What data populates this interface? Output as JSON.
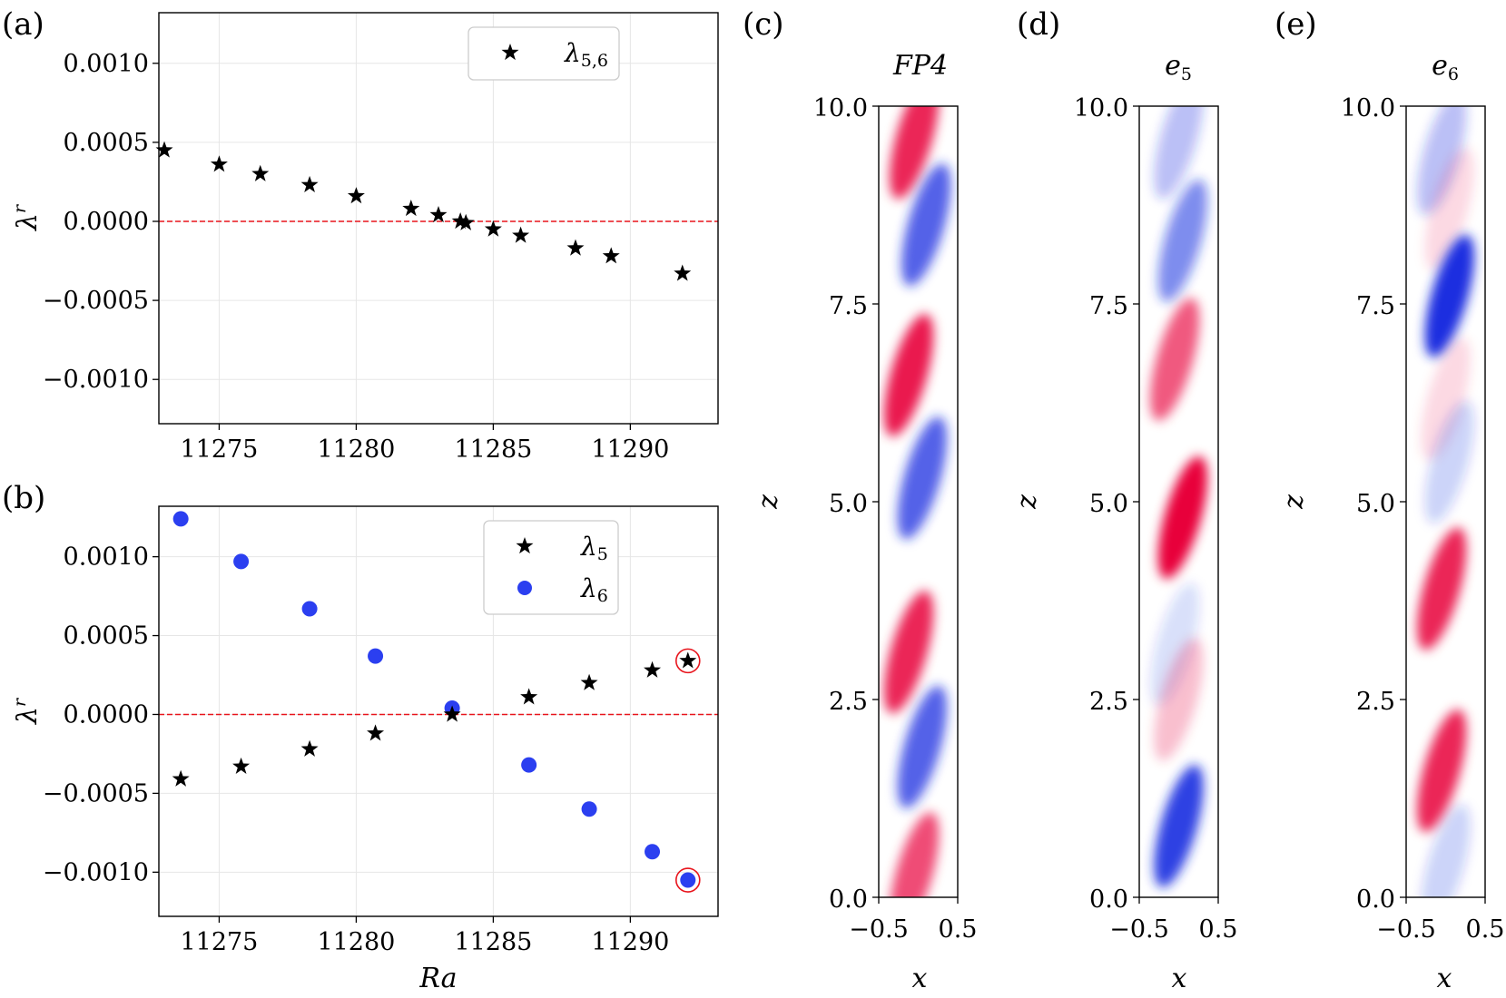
{
  "chart_data": [
    {
      "panel": "(a)",
      "type": "scatter",
      "ylabel": "λ",
      "ylabel_sup": "r",
      "xlabel": "",
      "xlim": [
        11272.8,
        11293.2
      ],
      "ylim": [
        -0.00128,
        0.00132
      ],
      "xticks": [
        11275,
        11280,
        11285,
        11290
      ],
      "xtick_labels": [
        "11275",
        "11280",
        "11285",
        "11290"
      ],
      "yticks": [
        0.001,
        0.0005,
        0.0,
        -0.0005,
        -0.001
      ],
      "ytick_labels": [
        "0.0010",
        "0.0005",
        "0.0000",
        "−0.0005",
        "−0.0010"
      ],
      "grid": true,
      "reference_line": {
        "y": 0.0,
        "color": "#e8141c",
        "style": "dashed"
      },
      "legend_position": "top-right",
      "series": [
        {
          "name": "λ5,6",
          "legend_main": "λ",
          "legend_sub": "5,6",
          "marker": "star",
          "color": "#000000",
          "points": [
            [
              11273.0,
              0.00045
            ],
            [
              11275.0,
              0.00036
            ],
            [
              11276.5,
              0.0003
            ],
            [
              11278.3,
              0.00023
            ],
            [
              11280.0,
              0.00016
            ],
            [
              11282.0,
              8e-05
            ],
            [
              11283.0,
              4e-05
            ],
            [
              11283.8,
              0.0
            ],
            [
              11284.0,
              -1e-05
            ],
            [
              11285.0,
              -5e-05
            ],
            [
              11286.0,
              -9e-05
            ],
            [
              11288.0,
              -0.00017
            ],
            [
              11289.3,
              -0.00022
            ],
            [
              11291.9,
              -0.00033
            ]
          ]
        }
      ]
    },
    {
      "panel": "(b)",
      "type": "scatter",
      "ylabel": "λ",
      "ylabel_sup": "r",
      "xlabel": "Ra",
      "xlim": [
        11272.8,
        11293.2
      ],
      "ylim": [
        -0.00128,
        0.00132
      ],
      "xticks": [
        11275,
        11280,
        11285,
        11290
      ],
      "xtick_labels": [
        "11275",
        "11280",
        "11285",
        "11290"
      ],
      "yticks": [
        0.001,
        0.0005,
        0.0,
        -0.0005,
        -0.001
      ],
      "ytick_labels": [
        "0.0010",
        "0.0005",
        "0.0000",
        "−0.0005",
        "−0.0010"
      ],
      "grid": true,
      "reference_line": {
        "y": 0.0,
        "color": "#e8141c",
        "style": "dashed"
      },
      "legend_position": "top-right",
      "series": [
        {
          "name": "λ5",
          "legend_main": "λ",
          "legend_sub": "5",
          "marker": "star",
          "color": "#000000",
          "points": [
            [
              11273.6,
              -0.00041
            ],
            [
              11275.8,
              -0.00033
            ],
            [
              11278.3,
              -0.00022
            ],
            [
              11280.7,
              -0.00012
            ],
            [
              11283.5,
              0.0
            ],
            [
              11286.3,
              0.00011
            ],
            [
              11288.5,
              0.0002
            ],
            [
              11290.8,
              0.00028
            ],
            [
              11292.1,
              0.00034
            ]
          ]
        },
        {
          "name": "λ6",
          "legend_main": "λ",
          "legend_sub": "6",
          "marker": "circle",
          "color": "#2b3ff0",
          "points": [
            [
              11273.6,
              0.00124
            ],
            [
              11275.8,
              0.00097
            ],
            [
              11278.3,
              0.00067
            ],
            [
              11280.7,
              0.00037
            ],
            [
              11283.5,
              4e-05
            ],
            [
              11286.3,
              -0.00032
            ],
            [
              11288.5,
              -0.0006
            ],
            [
              11290.8,
              -0.00087
            ],
            [
              11292.1,
              -0.00105
            ]
          ]
        }
      ],
      "highlighted_points": [
        {
          "series": "λ5",
          "x": 11292.1,
          "y": 0.00034,
          "ring_color": "#e8141c"
        },
        {
          "series": "λ6",
          "x": 11292.1,
          "y": -0.00105,
          "ring_color": "#e8141c"
        }
      ]
    },
    {
      "panel": "(c)",
      "type": "heatmap",
      "title": "FP4",
      "xlabel": "x",
      "ylabel": "z",
      "xlim": [
        -0.5,
        0.5
      ],
      "ylim": [
        0.0,
        10.0
      ],
      "xticks": [
        -0.5,
        0.5
      ],
      "xtick_labels": [
        "−0.5",
        "0.5"
      ],
      "yticks": [
        0.0,
        2.5,
        5.0,
        7.5,
        10.0
      ],
      "ytick_labels": [
        "0.0",
        "2.5",
        "5.0",
        "7.5",
        "10.0"
      ],
      "colors": {
        "positive": "#e8003a",
        "negative": "#1a2fe0"
      },
      "blobs": [
        {
          "z": 9.6,
          "x": -0.05,
          "sign": 1,
          "amp": 0.85
        },
        {
          "z": 8.5,
          "x": 0.1,
          "sign": -1,
          "amp": 0.75
        },
        {
          "z": 6.6,
          "x": -0.12,
          "sign": 1,
          "amp": 0.9
        },
        {
          "z": 5.3,
          "x": 0.05,
          "sign": -1,
          "amp": 0.75
        },
        {
          "z": 3.1,
          "x": -0.12,
          "sign": 1,
          "amp": 0.85
        },
        {
          "z": 1.9,
          "x": 0.05,
          "sign": -1,
          "amp": 0.75
        },
        {
          "z": 0.3,
          "x": -0.05,
          "sign": 1,
          "amp": 0.7
        }
      ]
    },
    {
      "panel": "(d)",
      "type": "heatmap",
      "title": "e",
      "title_sub": "5",
      "xlabel": "x",
      "ylabel": "z",
      "xlim": [
        -0.5,
        0.5
      ],
      "ylim": [
        0.0,
        10.0
      ],
      "xticks": [
        -0.5,
        0.5
      ],
      "xtick_labels": [
        "−0.5",
        "0.5"
      ],
      "yticks": [
        0.0,
        2.5,
        5.0,
        7.5,
        10.0
      ],
      "ytick_labels": [
        "0.0",
        "2.5",
        "5.0",
        "7.5",
        "10.0"
      ],
      "colors": {
        "positive": "#e8003a",
        "negative": "#1a2fe0"
      },
      "blobs": [
        {
          "z": 9.6,
          "x": 0.0,
          "sign": -1,
          "amp": 0.3
        },
        {
          "z": 8.3,
          "x": 0.05,
          "sign": -1,
          "amp": 0.55
        },
        {
          "z": 6.8,
          "x": -0.05,
          "sign": 1,
          "amp": 0.65
        },
        {
          "z": 4.8,
          "x": 0.05,
          "sign": 1,
          "amp": 1.0
        },
        {
          "z": 3.2,
          "x": -0.05,
          "sign": -1,
          "amp": 0.15
        },
        {
          "z": 2.5,
          "x": 0.0,
          "sign": 1,
          "amp": 0.25
        },
        {
          "z": 0.9,
          "x": 0.0,
          "sign": -1,
          "amp": 0.9
        }
      ]
    },
    {
      "panel": "(e)",
      "type": "heatmap",
      "title": "e",
      "title_sub": "6",
      "xlabel": "x",
      "ylabel": "z",
      "xlim": [
        -0.5,
        0.5
      ],
      "ylim": [
        0.0,
        10.0
      ],
      "xticks": [
        -0.5,
        0.5
      ],
      "xtick_labels": [
        "−0.5",
        "0.5"
      ],
      "yticks": [
        0.0,
        2.5,
        5.0,
        7.5,
        10.0
      ],
      "ytick_labels": [
        "0.0",
        "2.5",
        "5.0",
        "7.5",
        "10.0"
      ],
      "colors": {
        "positive": "#e8003a",
        "negative": "#1a2fe0"
      },
      "blobs": [
        {
          "z": 9.4,
          "x": -0.05,
          "sign": -1,
          "amp": 0.3
        },
        {
          "z": 8.7,
          "x": 0.05,
          "sign": 1,
          "amp": 0.15
        },
        {
          "z": 7.6,
          "x": 0.05,
          "sign": -1,
          "amp": 1.0
        },
        {
          "z": 6.3,
          "x": 0.0,
          "sign": 1,
          "amp": 0.15
        },
        {
          "z": 5.5,
          "x": 0.05,
          "sign": -1,
          "amp": 0.2
        },
        {
          "z": 3.9,
          "x": -0.05,
          "sign": 1,
          "amp": 0.85
        },
        {
          "z": 1.6,
          "x": -0.05,
          "sign": 1,
          "amp": 0.85
        },
        {
          "z": 0.4,
          "x": 0.0,
          "sign": -1,
          "amp": 0.2
        }
      ]
    }
  ]
}
